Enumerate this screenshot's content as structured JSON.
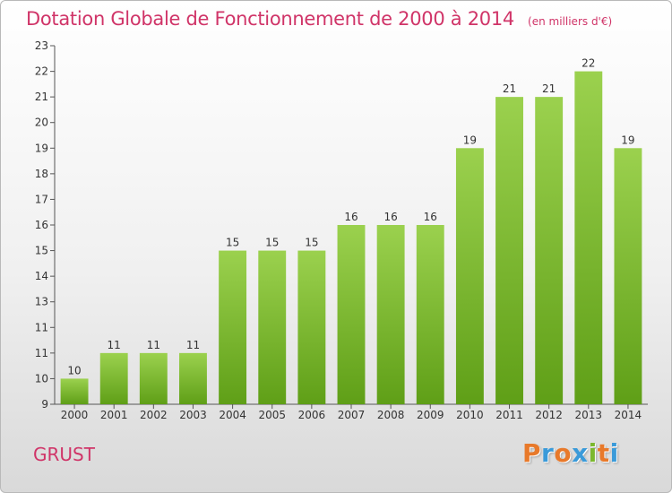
{
  "header": {
    "title": "Dotation Globale de Fonctionnement de 2000 à 2014",
    "unit": "(en milliers d'€)"
  },
  "footer": {
    "location": "GRUST",
    "logo": {
      "letters": [
        "P",
        "r",
        "o",
        "x",
        "i",
        "t",
        "i"
      ]
    }
  },
  "colors": {
    "title": "#d03468",
    "bar_top": "#9bd14e",
    "bar_bottom": "#5f9f17",
    "logo": [
      "#e8792a",
      "#3a9ad9",
      "#e8792a",
      "#3a9ad9",
      "#7cb82f",
      "#e8792a",
      "#3a9ad9"
    ]
  },
  "chart_data": {
    "type": "bar",
    "title": "Dotation Globale de Fonctionnement de 2000 à 2014",
    "categories": [
      "2000",
      "2001",
      "2002",
      "2003",
      "2004",
      "2005",
      "2006",
      "2007",
      "2008",
      "2009",
      "2010",
      "2011",
      "2012",
      "2013",
      "2014"
    ],
    "values": [
      10,
      11,
      11,
      11,
      15,
      15,
      15,
      16,
      16,
      16,
      19,
      21,
      21,
      22,
      19
    ],
    "data_labels": [
      "10",
      "11",
      "11",
      "11",
      "15",
      "15",
      "15",
      "16",
      "16",
      "16",
      "19",
      "21",
      "21",
      "22",
      "19"
    ],
    "yticks": [
      "9",
      "10",
      "11",
      "11",
      "13",
      "14",
      "15",
      "16",
      "17",
      "18",
      "19",
      "20",
      "21",
      "22",
      "23"
    ],
    "ylim": [
      9,
      23
    ],
    "xlabel": "",
    "ylabel": "",
    "grid": false,
    "legend": "none"
  }
}
